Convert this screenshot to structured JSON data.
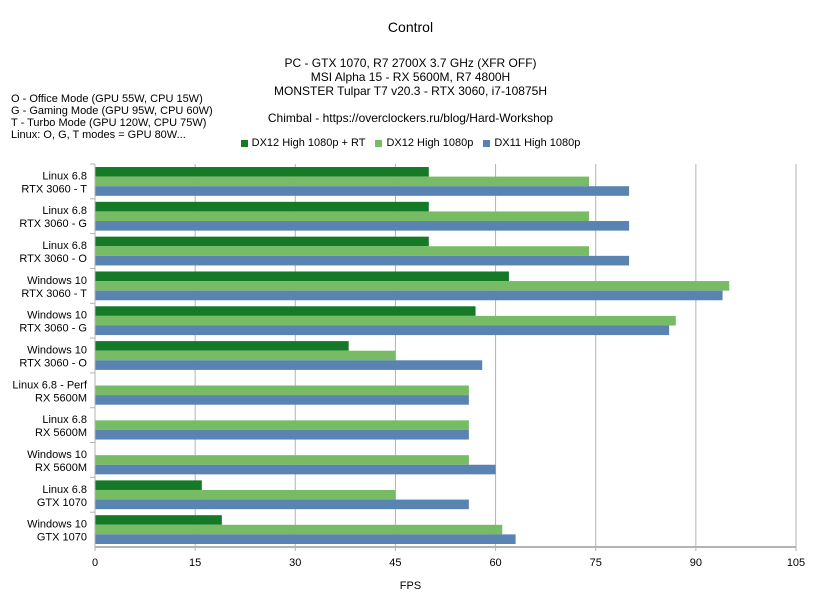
{
  "chart_data": {
    "type": "bar",
    "orientation": "horizontal",
    "title": "Control",
    "subtitle_lines": [
      "PC - GTX 1070, R7 2700X 3.7 GHz (XFR OFF)",
      "MSI Alpha 15 - RX 5600M, R7 4800H",
      "MONSTER Tulpar T7 v20.3 - RTX 3060, i7-10875H",
      "Chimbal - https://overclockers.ru/blog/Hard-Workshop"
    ],
    "notes": [
      "O - Office Mode (GPU 55W, CPU 15W)",
      "G - Gaming Mode (GPU 95W, CPU 60W)",
      "T - Turbo Mode (GPU 120W, CPU 75W)",
      "Linux: O, G, T modes = GPU 80W..."
    ],
    "xlabel": "FPS",
    "ylabel": "",
    "xlim": [
      0,
      105
    ],
    "xticks": [
      "0",
      "15",
      "30",
      "45",
      "60",
      "75",
      "90",
      "105"
    ],
    "grid": true,
    "legend_position": "top",
    "categories": [
      [
        "Linux 6.8",
        "RTX 3060 - T"
      ],
      [
        "Linux 6.8",
        "RTX 3060 - G"
      ],
      [
        "Linux 6.8",
        "RTX 3060 - O"
      ],
      [
        "Windows 10",
        "RTX 3060 - T"
      ],
      [
        "Windows 10",
        "RTX 3060 - G"
      ],
      [
        "Windows 10",
        "RTX 3060 - O"
      ],
      [
        "Linux 6.8 - Perf",
        "RX 5600M"
      ],
      [
        "Linux 6.8",
        "RX 5600M"
      ],
      [
        "Windows 10",
        "RX 5600M"
      ],
      [
        "Linux 6.8",
        "GTX 1070"
      ],
      [
        "Windows 10",
        "GTX 1070"
      ]
    ],
    "series": [
      {
        "name": "DX12 High 1080p + RT",
        "color": "#157a28",
        "values": [
          50,
          50,
          50,
          62,
          57,
          38,
          null,
          null,
          null,
          16,
          19
        ]
      },
      {
        "name": "DX12 High 1080p",
        "color": "#77bc65",
        "values": [
          74,
          74,
          74,
          95,
          87,
          45,
          56,
          56,
          56,
          45,
          61
        ]
      },
      {
        "name": "DX11 High 1080p",
        "color": "#5983b0",
        "values": [
          80,
          80,
          80,
          94,
          86,
          58,
          56,
          56,
          60,
          56,
          63
        ]
      }
    ]
  }
}
